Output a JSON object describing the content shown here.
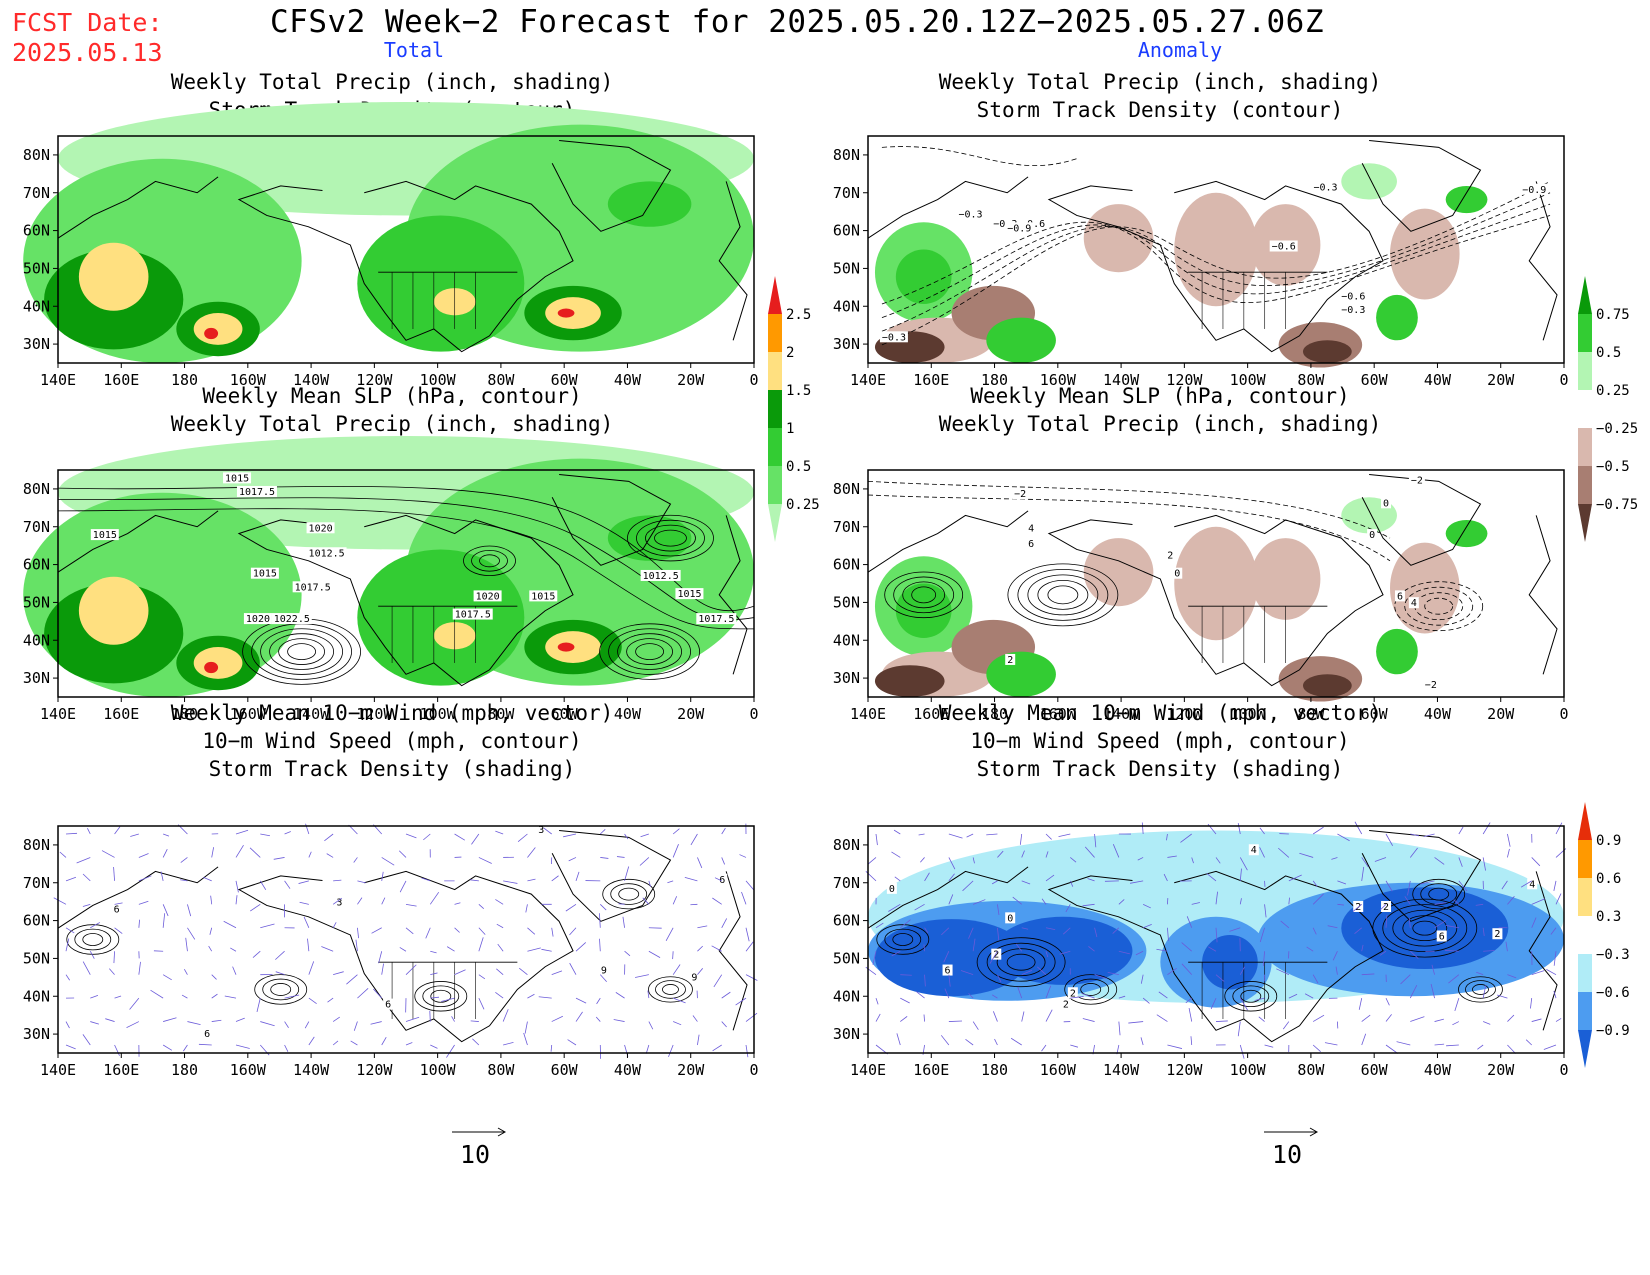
{
  "header": {
    "fcst_label": "FCST Date:",
    "fcst_date": "2025.05.13",
    "title": "CFSv2 Week−2 Forecast for 2025.05.20.12Z−2025.05.27.06Z",
    "col_total": "Total",
    "col_anomaly": "Anomaly"
  },
  "panels": [
    {
      "id": "tl",
      "title_lines": [
        "Weekly Total Precip (inch, shading)",
        "Storm Track Density (contour)"
      ]
    },
    {
      "id": "tr",
      "title_lines": [
        "Weekly Total Precip (inch, shading)",
        "Storm Track Density (contour)"
      ]
    },
    {
      "id": "ml",
      "title_lines": [
        "Weekly Mean SLP (hPa, contour)",
        "Weekly Total Precip (inch, shading)"
      ]
    },
    {
      "id": "mr",
      "title_lines": [
        "Weekly Mean SLP (hPa, contour)",
        "Weekly Total Precip (inch, shading)"
      ]
    },
    {
      "id": "bl",
      "title_lines": [
        "Weekly Mean 10−m Wind (mph, vector)",
        "10−m Wind Speed (mph, contour)",
        "Storm Track Density (shading)"
      ]
    },
    {
      "id": "br",
      "title_lines": [
        "Weekly Mean 10−m Wind (mph, vector)",
        "10−m Wind Speed (mph, contour)",
        "Storm Track Density (shading)"
      ]
    }
  ],
  "axes": {
    "lon_ticks": [
      "140E",
      "160E",
      "180",
      "160W",
      "140W",
      "120W",
      "100W",
      "80W",
      "60W",
      "40W",
      "20W",
      "0"
    ],
    "lat_ticks": [
      "80N",
      "70N",
      "60N",
      "50N",
      "40N",
      "30N"
    ]
  },
  "colorbars": {
    "precip_total": {
      "labels": [
        "2.5",
        "2",
        "1.5",
        "1",
        "0.5",
        "0.25"
      ],
      "colors": [
        "#e61e1e",
        "#ff9900",
        "#ffe080",
        "#0a9a0a",
        "#33cc33",
        "#66e266",
        "#b3f5b3"
      ]
    },
    "precip_anom": {
      "labels": [
        "0.75",
        "0.5",
        "0.25",
        "−0.25",
        "−0.5",
        "−0.75"
      ],
      "colors": [
        "#0a9a0a",
        "#33cc33",
        "#b3f5b3",
        "#ffffff",
        "#d9b8ae",
        "#a87e72",
        "#5c3a30"
      ]
    },
    "storm_anom": {
      "labels": [
        "0.9",
        "0.6",
        "0.3",
        "−0.3",
        "−0.6",
        "−0.9"
      ],
      "colors": [
        "#e62e0a",
        "#ff9900",
        "#ffe080",
        "#ffffff",
        "#b0ecf7",
        "#4d9cf0",
        "#1a5fd6"
      ]
    }
  },
  "contour_labels": {
    "tr": [
      "−0.3",
      "−0.3",
      "−0.3",
      "−0.3",
      "−0.6",
      "−0.6",
      "−0.6",
      "−0.9",
      "−0.9",
      "−0.3"
    ],
    "ml": [
      "1015",
      "1017.5",
      "1015",
      "1020",
      "1012.5",
      "1015",
      "1017.5",
      "1020",
      "1022.5",
      "1020",
      "1015",
      "1017.5",
      "1012.5",
      "1015",
      "1017.5"
    ],
    "mr": [
      "−2",
      "−2",
      "0",
      "4",
      "6",
      "2",
      "0",
      "2",
      "4",
      "6",
      "−2",
      "0"
    ],
    "bl": [
      "3",
      "3",
      "6",
      "9",
      "6",
      "6",
      "9",
      "6"
    ],
    "br": [
      "0",
      "6",
      "2",
      "4",
      "0",
      "2",
      "2",
      "2",
      "2",
      "4",
      "2",
      "6"
    ]
  },
  "reference_vector": {
    "label": "10"
  },
  "colors": {
    "fcst": "#ff2a2a",
    "column_header": "#1a3cff",
    "vectors": "#6b5bd9"
  }
}
